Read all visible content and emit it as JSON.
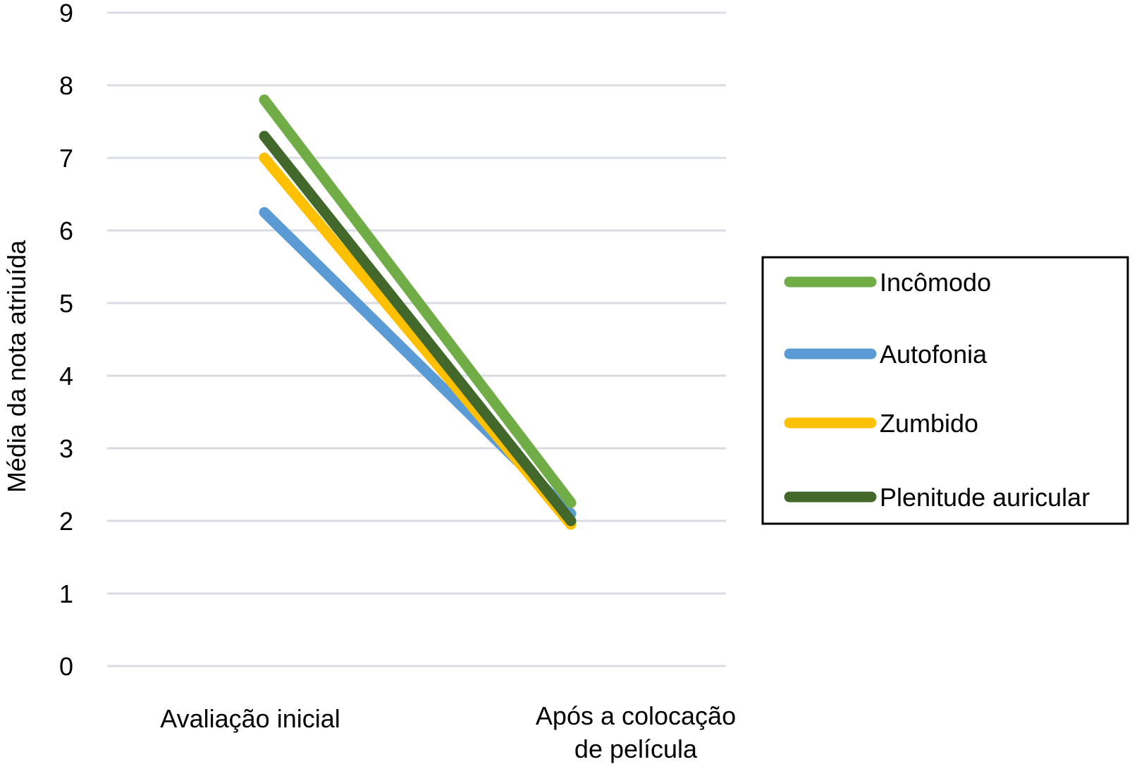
{
  "chart_data": {
    "type": "line",
    "title": "",
    "xlabel": "",
    "ylabel": "Média da nota atriuída",
    "categories": [
      [
        "Avaliação inicial"
      ],
      [
        "Após a colocação",
        "de película"
      ]
    ],
    "ylim": [
      0,
      9
    ],
    "yticks": [
      0,
      1,
      2,
      3,
      4,
      5,
      6,
      7,
      8,
      9
    ],
    "grid": true,
    "legend_position": "right",
    "series": [
      {
        "name": "Incômodo",
        "values": [
          7.8,
          2.25
        ],
        "color": "#70ad47"
      },
      {
        "name": "Autofonia",
        "values": [
          6.25,
          2.1
        ],
        "color": "#5b9bd5"
      },
      {
        "name": "Zumbido",
        "values": [
          7.0,
          1.95
        ],
        "color": "#ffc000"
      },
      {
        "name": "Plenitude auricular",
        "values": [
          7.3,
          2.0
        ],
        "color": "#43682b"
      }
    ]
  }
}
